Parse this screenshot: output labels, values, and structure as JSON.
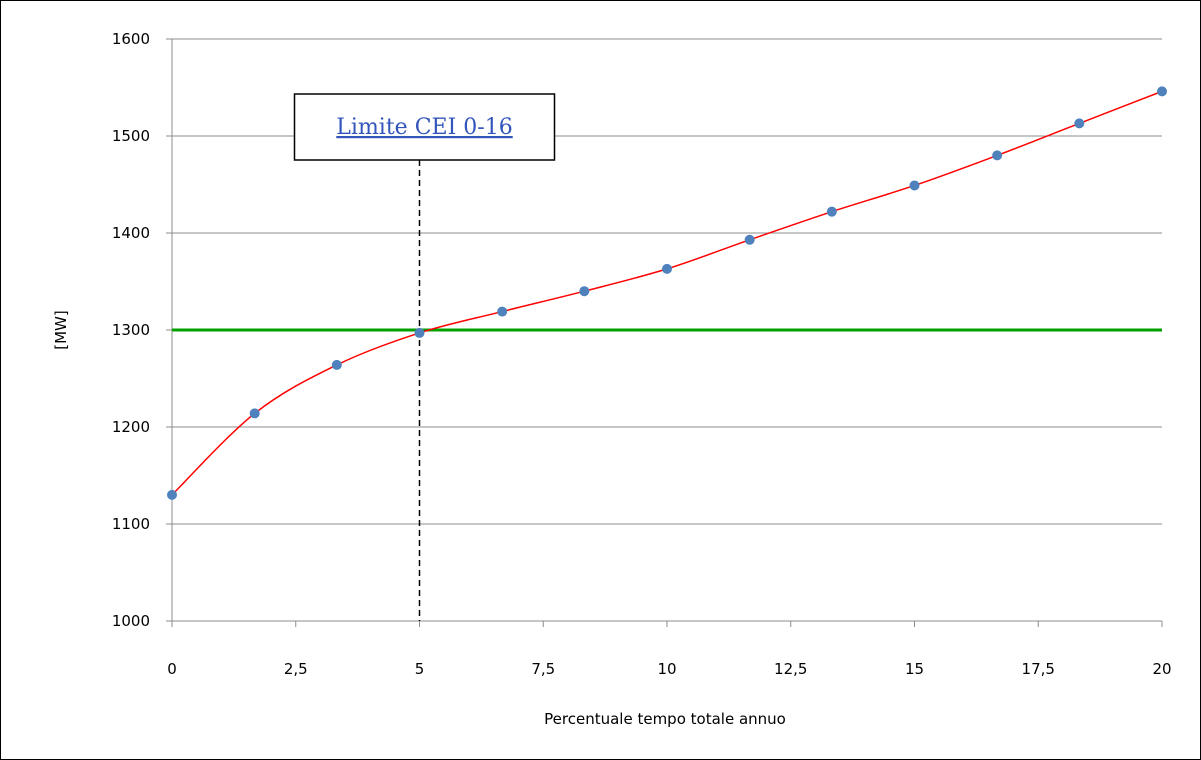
{
  "chart_data": {
    "type": "line",
    "xlabel": "Percentuale tempo totale annuo",
    "ylabel": "[MW]",
    "xlim": [
      0,
      20
    ],
    "ylim": [
      1000,
      1600
    ],
    "x_ticks": [
      "0",
      "2,5",
      "5",
      "7,5",
      "10",
      "12,5",
      "15",
      "17,5",
      "20"
    ],
    "y_ticks": [
      "1000",
      "1100",
      "1200",
      "1300",
      "1400",
      "1500",
      "1600"
    ],
    "grid": "horizontal",
    "series": [
      {
        "x": [
          0,
          1.67,
          3.33,
          5,
          6.67,
          8.33,
          10,
          11.67,
          13.33,
          15,
          16.67,
          18.33,
          20
        ],
        "y": [
          1130,
          1214,
          1264,
          1297,
          1319,
          1340,
          1363,
          1393,
          1422,
          1449,
          1480,
          1513,
          1546
        ],
        "marker_color": "#4f81bd",
        "trend_color": "#ff0000"
      }
    ],
    "threshold": {
      "y": 1300,
      "color": "#00a000"
    },
    "vline": {
      "x": 5,
      "color": "#000000",
      "style": "dashed"
    },
    "annotation": {
      "text": "Limite CEI 0-16",
      "x": 5,
      "color": "#3355bb"
    }
  }
}
